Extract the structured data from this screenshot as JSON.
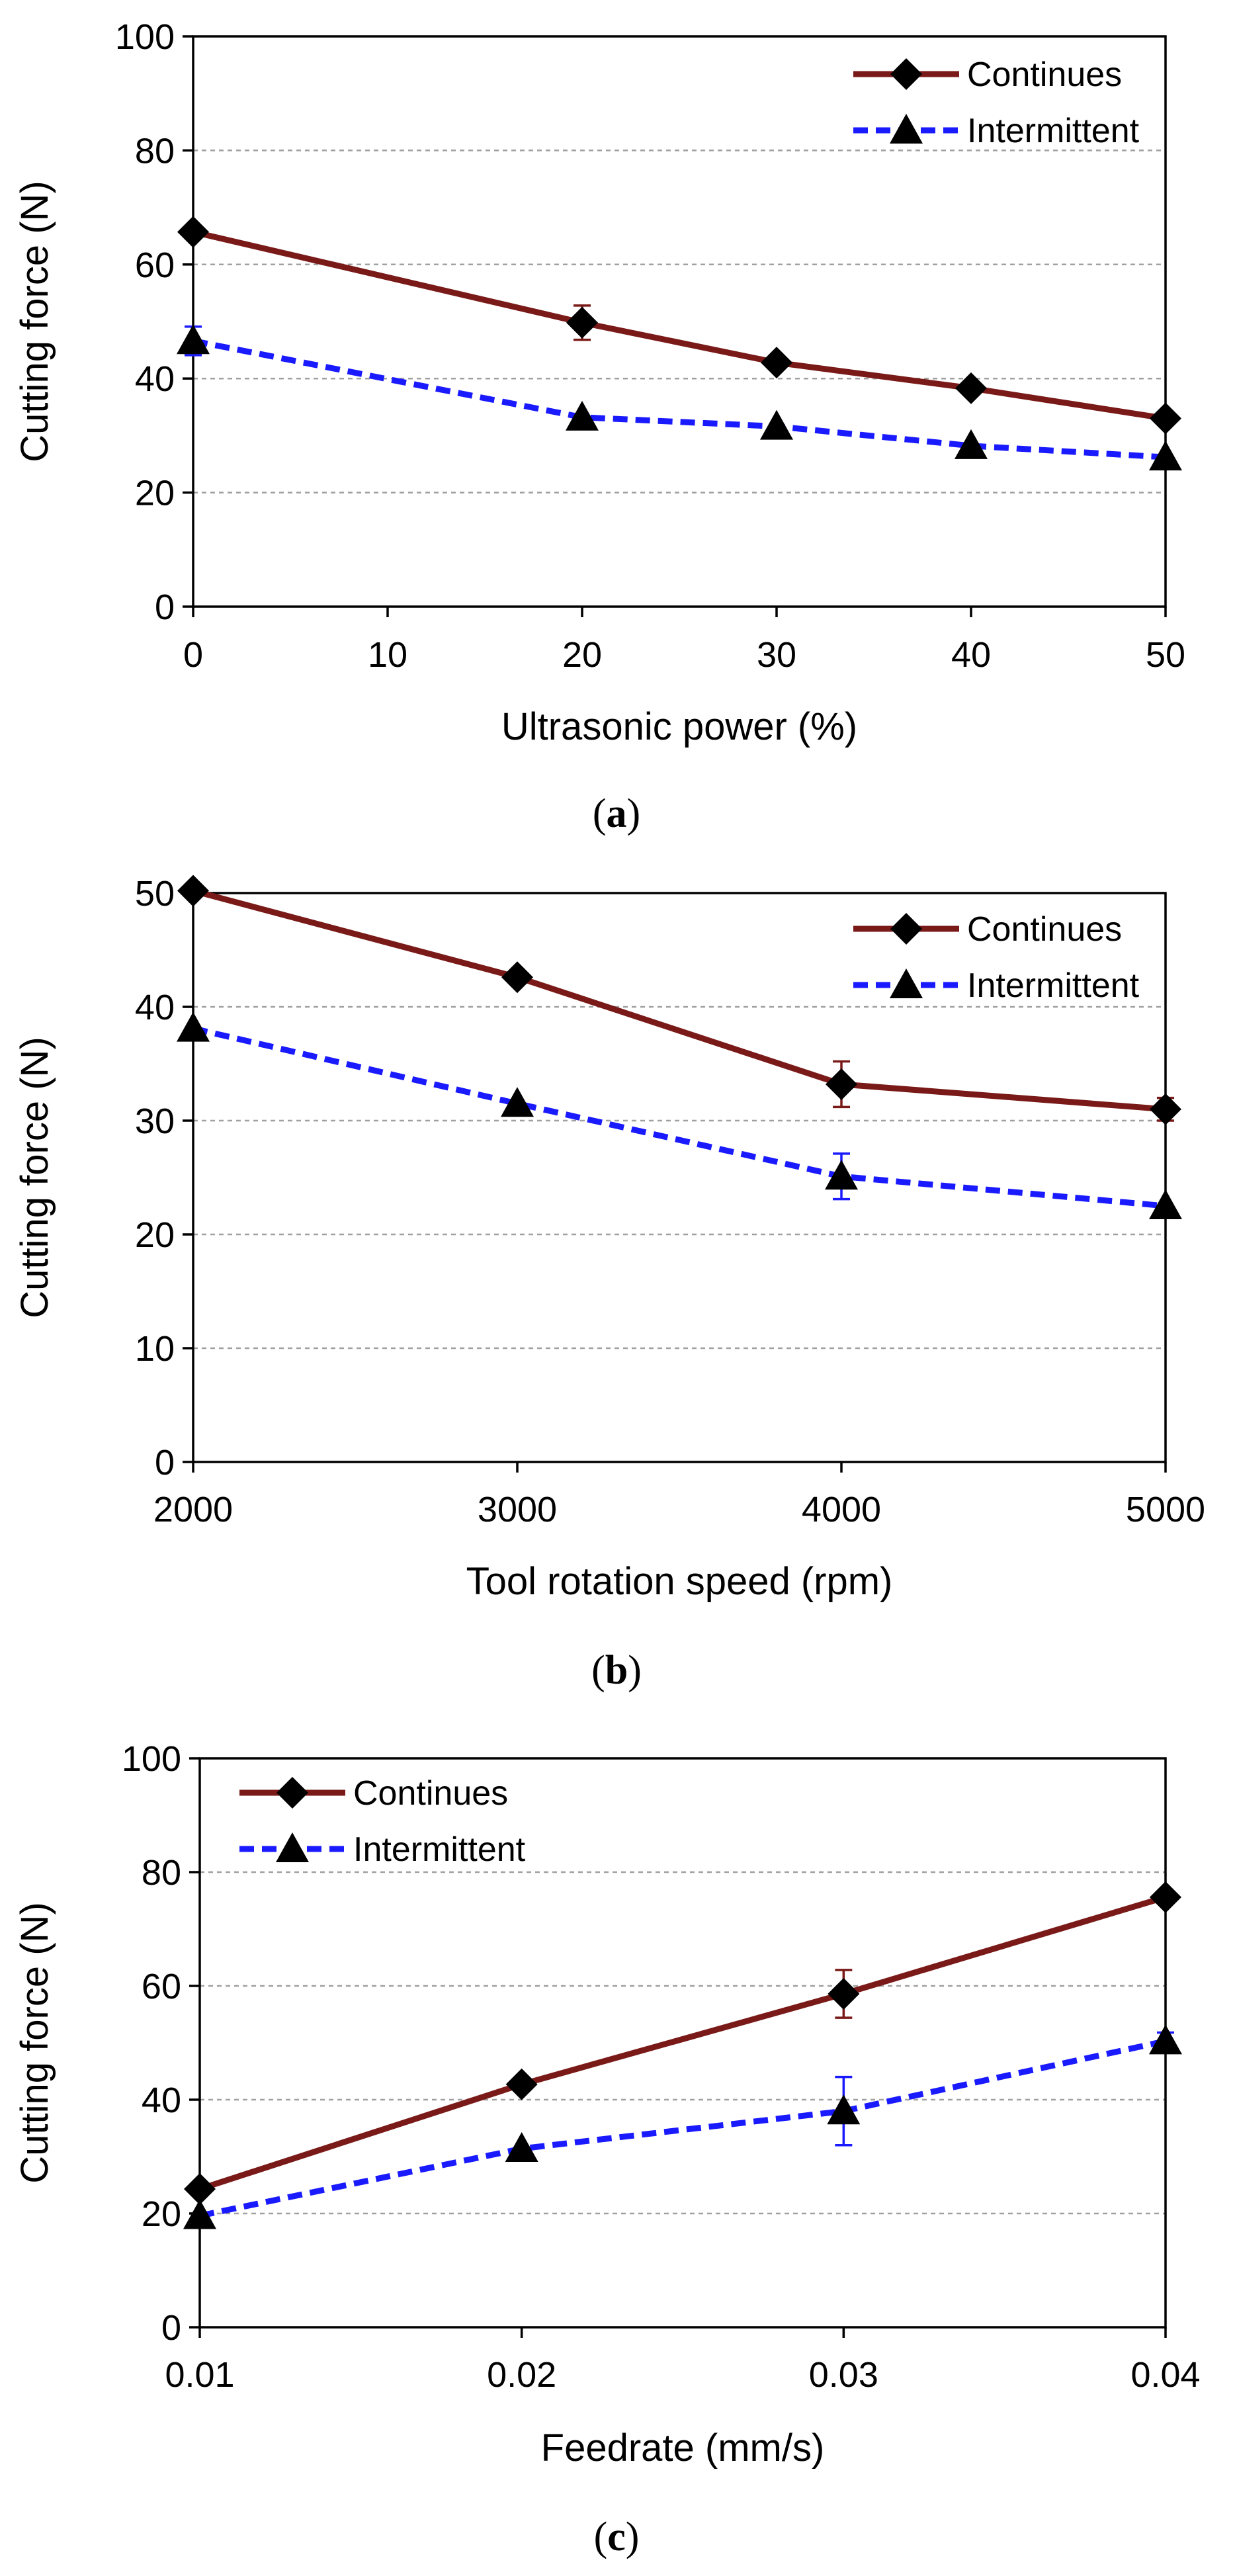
{
  "colors": {
    "continues": "#7a1a18",
    "intermittent": "#1a1aff",
    "grid": "#a0a0a0",
    "axis": "#000000"
  },
  "chart_data": [
    {
      "type": "line",
      "panel": "a",
      "panel_label": "a",
      "xlabel": "Ultrasonic power (%)",
      "ylabel": "Cutting force (N)",
      "xlim": [
        0,
        50
      ],
      "ylim": [
        0,
        100
      ],
      "x_ticks": [
        0,
        10,
        20,
        30,
        40,
        50
      ],
      "y_ticks": [
        0,
        20,
        40,
        60,
        80,
        100
      ],
      "legend_position": "top-right",
      "series": [
        {
          "name": "Continues",
          "marker": "diamond",
          "line": "solid",
          "x": [
            0,
            20,
            30,
            40,
            50
          ],
          "y": [
            65.7,
            49.8,
            42.8,
            38.3,
            33.0
          ],
          "err": [
            0,
            3.0,
            0,
            0,
            0
          ]
        },
        {
          "name": "Intermittent",
          "marker": "triangle",
          "line": "dashed",
          "x": [
            0,
            20,
            30,
            40,
            50
          ],
          "y": [
            46.6,
            33.2,
            31.6,
            28.2,
            26.2
          ],
          "err": [
            2.5,
            0,
            0,
            0,
            0
          ]
        }
      ]
    },
    {
      "type": "line",
      "panel": "b",
      "panel_label": "b",
      "xlabel": "Tool rotation speed (rpm)",
      "ylabel": "Cutting force (N)",
      "xlim": [
        2000,
        5000
      ],
      "ylim": [
        0,
        50
      ],
      "x_ticks": [
        2000,
        3000,
        4000,
        5000
      ],
      "y_ticks": [
        0,
        10,
        20,
        30,
        40,
        50
      ],
      "legend_position": "top-right",
      "series": [
        {
          "name": "Continues",
          "marker": "diamond",
          "line": "solid",
          "x": [
            2000,
            3000,
            4000,
            5000
          ],
          "y": [
            50.2,
            42.6,
            33.2,
            31.0
          ],
          "err": [
            0,
            0,
            2.0,
            1.0
          ]
        },
        {
          "name": "Intermittent",
          "marker": "triangle",
          "line": "dashed",
          "x": [
            2000,
            3000,
            4000,
            5000
          ],
          "y": [
            38.1,
            31.5,
            25.1,
            22.5
          ],
          "err": [
            0,
            0,
            2.0,
            0
          ]
        }
      ]
    },
    {
      "type": "line",
      "panel": "c",
      "panel_label": "c",
      "xlabel": "Feedrate (mm/s)",
      "ylabel": "Cutting force (N)",
      "xlim": [
        0.01,
        0.04
      ],
      "ylim": [
        0,
        100
      ],
      "x_ticks": [
        0.01,
        0.02,
        0.03,
        0.04
      ],
      "y_ticks": [
        0,
        20,
        40,
        60,
        80,
        100
      ],
      "legend_position": "top-left",
      "series": [
        {
          "name": "Continues",
          "marker": "diamond",
          "line": "solid",
          "x": [
            0.01,
            0.02,
            0.03,
            0.04
          ],
          "y": [
            24.3,
            42.7,
            58.6,
            75.6
          ],
          "err": [
            0,
            0,
            4.2,
            0
          ]
        },
        {
          "name": "Intermittent",
          "marker": "triangle",
          "line": "dashed",
          "x": [
            0.01,
            0.02,
            0.03,
            0.04
          ],
          "y": [
            19.6,
            31.4,
            38.0,
            50.3
          ],
          "err": [
            0,
            0,
            6.0,
            1.5
          ]
        }
      ]
    }
  ]
}
